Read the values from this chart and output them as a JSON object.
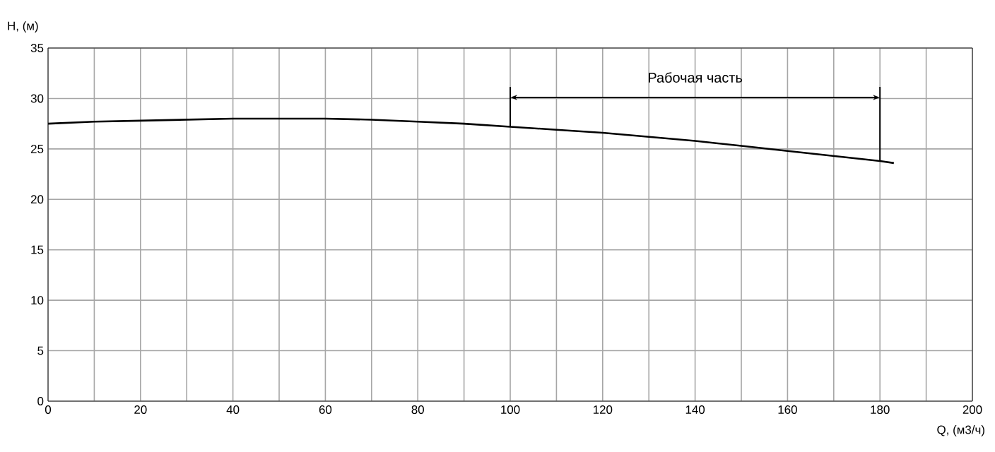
{
  "chart_data": {
    "type": "line",
    "xlabel": "Q, (м3/ч)",
    "ylabel": "H, (м)",
    "series": [
      {
        "color": "#000000",
        "x": [
          0,
          10,
          20,
          30,
          40,
          50,
          60,
          70,
          80,
          90,
          100,
          110,
          120,
          130,
          140,
          150,
          160,
          170,
          180,
          183
        ],
        "values": [
          27.5,
          27.7,
          27.8,
          27.9,
          28,
          28,
          28,
          27.9,
          27.7,
          27.5,
          27.2,
          26.9,
          26.6,
          26.2,
          25.8,
          25.3,
          24.8,
          24.3,
          23.8,
          23.6
        ]
      }
    ],
    "xlim": [
      0,
      200
    ],
    "ylim": [
      0,
      35
    ],
    "xticks": [
      0,
      {
        "value": 10,
        "label": null
      },
      20,
      {
        "value": 30,
        "label": null
      },
      40,
      {
        "value": 50,
        "label": null
      },
      60,
      {
        "value": 70,
        "label": null
      },
      80,
      {
        "value": 90,
        "label": null
      },
      100,
      {
        "value": 110,
        "label": null
      },
      120,
      {
        "value": 130,
        "label": null
      },
      140,
      {
        "value": 150,
        "label": null
      },
      160,
      {
        "value": 170,
        "label": null
      },
      180,
      {
        "value": 190,
        "label": null
      },
      200
    ],
    "yticks": [
      0,
      5,
      10,
      15,
      20,
      25,
      30,
      35
    ],
    "grid": true,
    "marker": "none",
    "line_style": "solid",
    "ref_lines": [
      {
        "axis": "x",
        "value": 100
      },
      {
        "axis": "x",
        "value": 180
      }
    ],
    "annotations": [
      "Рабочая часть"
    ]
  }
}
